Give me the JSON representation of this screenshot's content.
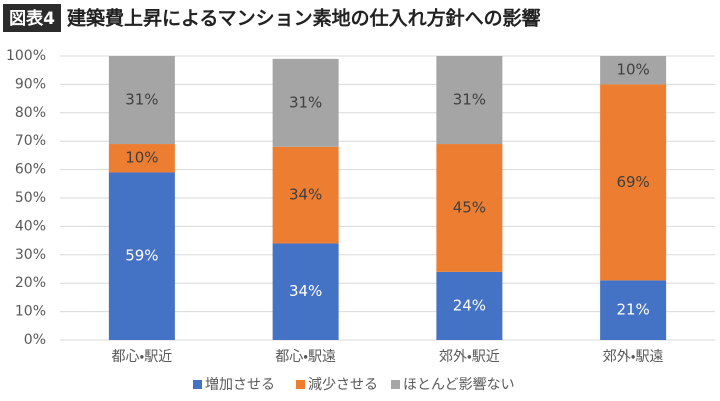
{
  "chart_data": {
    "type": "stacked_bar",
    "figure_label": "図表4",
    "title": "建築費上昇によるマンション素地の仕入れ方針への影響",
    "categories": [
      "都心・駅近",
      "都心・駅遠",
      "郊外・駅近",
      "郊外・駅遠"
    ],
    "series": [
      {
        "name": "増加させる",
        "color": "#4472c4",
        "label_color": "#ffffff",
        "values": [
          59,
          34,
          24,
          21
        ],
        "value_labels": [
          "59%",
          "34%",
          "24%",
          "21%"
        ]
      },
      {
        "name": "減少させる",
        "color": "#ed7d31",
        "label_color": "#404040",
        "values": [
          10,
          34,
          45,
          69
        ],
        "value_labels": [
          "10%",
          "34%",
          "45%",
          "69%"
        ]
      },
      {
        "name": "ほとんど影響ない",
        "color": "#a5a5a5",
        "label_color": "#404040",
        "values": [
          31,
          31,
          31,
          10
        ],
        "value_labels": [
          "31%",
          "31%",
          "31%",
          "10%"
        ]
      }
    ],
    "ylim": [
      0,
      100
    ],
    "yticks": [
      {
        "value": 0,
        "label": "0%"
      },
      {
        "value": 10,
        "label": "10%"
      },
      {
        "value": 20,
        "label": "20%"
      },
      {
        "value": 30,
        "label": "30%"
      },
      {
        "value": 40,
        "label": "40%"
      },
      {
        "value": 50,
        "label": "50%"
      },
      {
        "value": 60,
        "label": "60%"
      },
      {
        "value": 70,
        "label": "70%"
      },
      {
        "value": 80,
        "label": "80%"
      },
      {
        "value": 90,
        "label": "90%"
      },
      {
        "value": 100,
        "label": "100%"
      }
    ],
    "grid": true,
    "legend": "bottom"
  }
}
